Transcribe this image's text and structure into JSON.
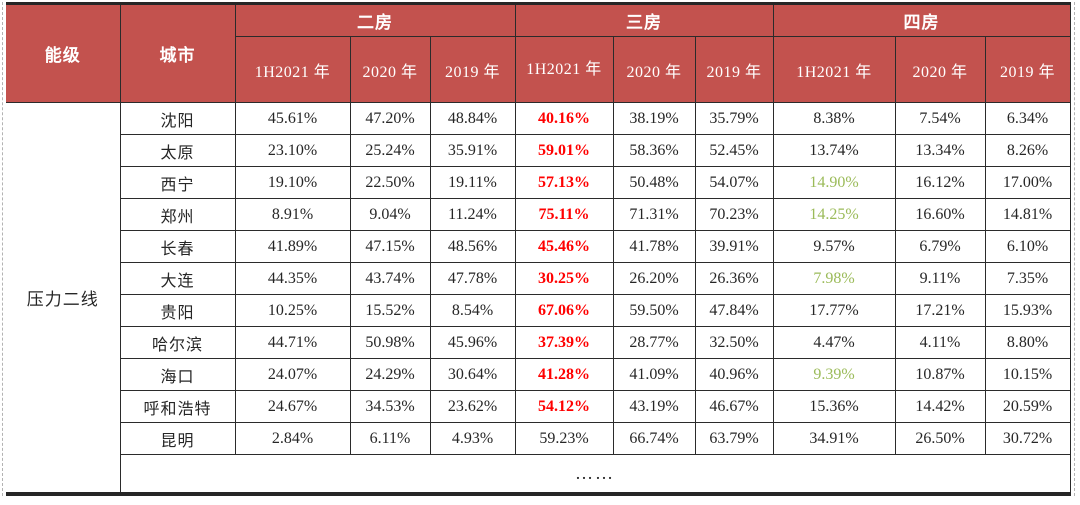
{
  "colors": {
    "header_bg": "#C3524E",
    "header_text": "#FFFFFF",
    "highlight_red": "#FF0000",
    "highlight_green": "#9BBB59",
    "body_text": "#262626"
  },
  "chart_data": {
    "type": "table",
    "corner_headers": {
      "level": "能级",
      "city": "城市"
    },
    "column_groups": [
      {
        "label": "二房",
        "years": [
          "1H2021 年",
          "2020 年",
          "2019 年"
        ]
      },
      {
        "label": "三房",
        "years": [
          "1H2021 年",
          "2020 年",
          "2019 年"
        ]
      },
      {
        "label": "四房",
        "years": [
          "1H2021 年",
          "2020 年",
          "2019 年"
        ]
      }
    ],
    "tier_label": "压力二线",
    "rows": [
      {
        "city": "沈阳",
        "values": [
          "45.61%",
          "47.20%",
          "48.84%",
          "40.16%",
          "38.19%",
          "35.79%",
          "8.38%",
          "7.54%",
          "6.34%"
        ],
        "marks": [
          "",
          "",
          "",
          "red",
          "",
          "",
          "",
          "",
          ""
        ]
      },
      {
        "city": "太原",
        "values": [
          "23.10%",
          "25.24%",
          "35.91%",
          "59.01%",
          "58.36%",
          "52.45%",
          "13.74%",
          "13.34%",
          "8.26%"
        ],
        "marks": [
          "",
          "",
          "",
          "red",
          "",
          "",
          "",
          "",
          ""
        ]
      },
      {
        "city": "西宁",
        "values": [
          "19.10%",
          "22.50%",
          "19.11%",
          "57.13%",
          "50.48%",
          "54.07%",
          "14.90%",
          "16.12%",
          "17.00%"
        ],
        "marks": [
          "",
          "",
          "",
          "red",
          "",
          "",
          "green",
          "",
          ""
        ]
      },
      {
        "city": "郑州",
        "values": [
          "8.91%",
          "9.04%",
          "11.24%",
          "75.11%",
          "71.31%",
          "70.23%",
          "14.25%",
          "16.60%",
          "14.81%"
        ],
        "marks": [
          "",
          "",
          "",
          "red",
          "",
          "",
          "green",
          "",
          ""
        ]
      },
      {
        "city": "长春",
        "values": [
          "41.89%",
          "47.15%",
          "48.56%",
          "45.46%",
          "41.78%",
          "39.91%",
          "9.57%",
          "6.79%",
          "6.10%"
        ],
        "marks": [
          "",
          "",
          "",
          "red",
          "",
          "",
          "",
          "",
          ""
        ]
      },
      {
        "city": "大连",
        "values": [
          "44.35%",
          "43.74%",
          "47.78%",
          "30.25%",
          "26.20%",
          "26.36%",
          "7.98%",
          "9.11%",
          "7.35%"
        ],
        "marks": [
          "",
          "",
          "",
          "red",
          "",
          "",
          "green",
          "",
          ""
        ]
      },
      {
        "city": "贵阳",
        "values": [
          "10.25%",
          "15.52%",
          "8.54%",
          "67.06%",
          "59.50%",
          "47.84%",
          "17.77%",
          "17.21%",
          "15.93%"
        ],
        "marks": [
          "",
          "",
          "",
          "red",
          "",
          "",
          "",
          "",
          ""
        ]
      },
      {
        "city": "哈尔滨",
        "values": [
          "44.71%",
          "50.98%",
          "45.96%",
          "37.39%",
          "28.77%",
          "32.50%",
          "4.47%",
          "4.11%",
          "8.80%"
        ],
        "marks": [
          "",
          "",
          "",
          "red",
          "",
          "",
          "",
          "",
          ""
        ]
      },
      {
        "city": "海口",
        "values": [
          "24.07%",
          "24.29%",
          "30.64%",
          "41.28%",
          "41.09%",
          "40.96%",
          "9.39%",
          "10.87%",
          "10.15%"
        ],
        "marks": [
          "",
          "",
          "",
          "red",
          "",
          "",
          "green",
          "",
          ""
        ]
      },
      {
        "city": "呼和浩特",
        "values": [
          "24.67%",
          "34.53%",
          "23.62%",
          "54.12%",
          "43.19%",
          "46.67%",
          "15.36%",
          "14.42%",
          "20.59%"
        ],
        "marks": [
          "",
          "",
          "",
          "red",
          "",
          "",
          "",
          "",
          ""
        ]
      },
      {
        "city": "昆明",
        "values": [
          "2.84%",
          "6.11%",
          "4.93%",
          "59.23%",
          "66.74%",
          "63.79%",
          "34.91%",
          "26.50%",
          "30.72%"
        ],
        "marks": [
          "",
          "",
          "",
          "",
          "",
          "",
          "",
          "",
          ""
        ]
      }
    ],
    "ellipsis_row": "……"
  }
}
